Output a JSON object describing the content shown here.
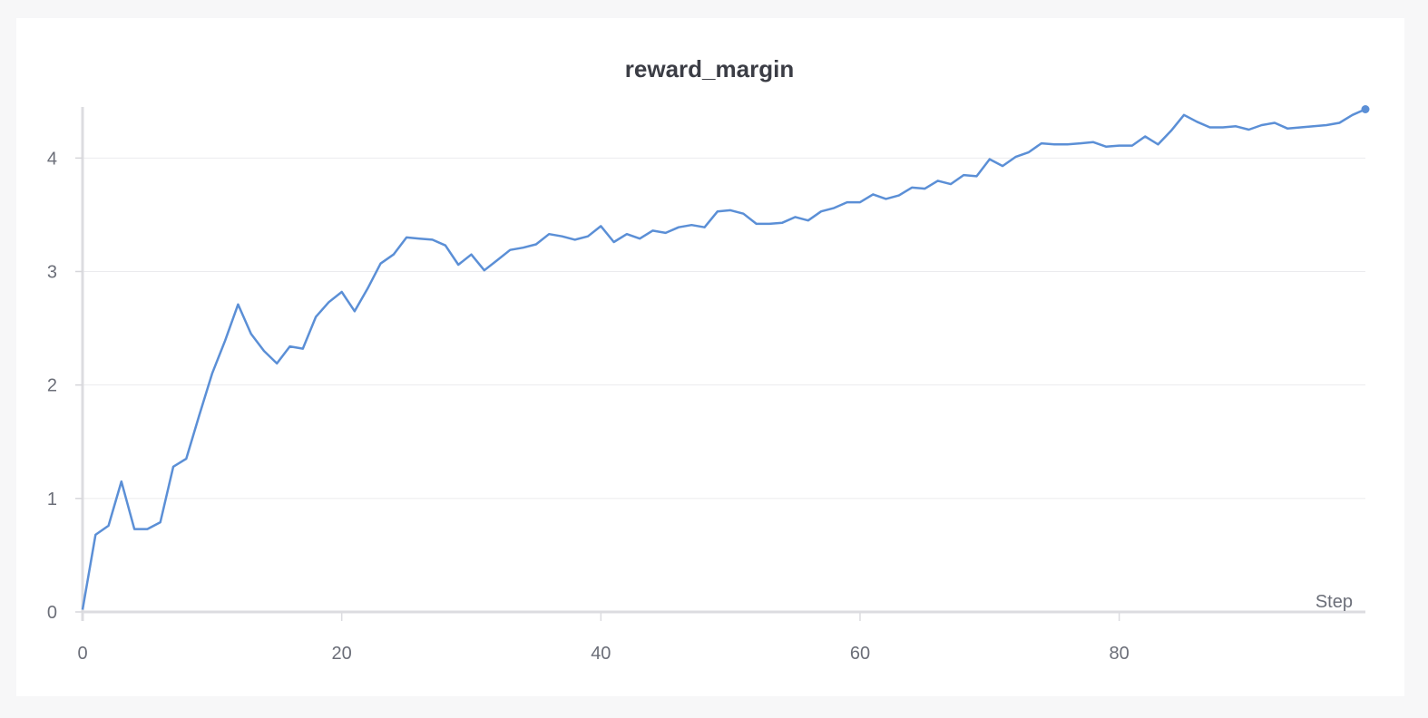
{
  "chart_data": {
    "type": "line",
    "title": "reward_margin",
    "xlabel": "Step",
    "ylabel": "",
    "xlim": [
      0,
      99
    ],
    "ylim": [
      0,
      4.45
    ],
    "xticks": [
      0,
      20,
      40,
      60,
      80
    ],
    "yticks": [
      0,
      1,
      2,
      3,
      4
    ],
    "grid": true,
    "legend": "none",
    "series": [
      {
        "color": "#5b8fd6",
        "x": [
          0,
          1,
          2,
          3,
          4,
          5,
          6,
          7,
          8,
          9,
          10,
          11,
          12,
          13,
          14,
          15,
          16,
          17,
          18,
          19,
          20,
          21,
          22,
          23,
          24,
          25,
          26,
          27,
          28,
          29,
          30,
          31,
          32,
          33,
          34,
          35,
          36,
          37,
          38,
          39,
          40,
          41,
          42,
          43,
          44,
          45,
          46,
          47,
          48,
          49,
          50,
          51,
          52,
          53,
          54,
          55,
          56,
          57,
          58,
          59,
          60,
          61,
          62,
          63,
          64,
          65,
          66,
          67,
          68,
          69,
          70,
          71,
          72,
          73,
          74,
          75,
          76,
          77,
          78,
          79,
          80,
          81,
          82,
          83,
          84,
          85,
          86,
          87,
          88,
          89,
          90,
          91,
          92,
          93,
          94,
          95,
          96,
          97,
          98,
          99
        ],
        "values": [
          0.02,
          0.68,
          0.76,
          1.15,
          0.73,
          0.73,
          0.79,
          1.28,
          1.35,
          1.73,
          2.1,
          2.39,
          2.71,
          2.45,
          2.3,
          2.19,
          2.34,
          2.32,
          2.6,
          2.73,
          2.82,
          2.65,
          2.85,
          3.07,
          3.15,
          3.3,
          3.29,
          3.28,
          3.23,
          3.06,
          3.15,
          3.01,
          3.1,
          3.19,
          3.21,
          3.24,
          3.33,
          3.31,
          3.28,
          3.31,
          3.4,
          3.26,
          3.33,
          3.29,
          3.36,
          3.34,
          3.39,
          3.41,
          3.39,
          3.53,
          3.54,
          3.51,
          3.42,
          3.42,
          3.43,
          3.48,
          3.45,
          3.53,
          3.56,
          3.61,
          3.61,
          3.68,
          3.64,
          3.67,
          3.74,
          3.73,
          3.8,
          3.77,
          3.85,
          3.84,
          3.99,
          3.93,
          4.01,
          4.05,
          4.13,
          4.12,
          4.12,
          4.13,
          4.14,
          4.1,
          4.11,
          4.11,
          4.19,
          4.12,
          4.24,
          4.38,
          4.32,
          4.27,
          4.27,
          4.28,
          4.25,
          4.29,
          4.31,
          4.26,
          4.27,
          4.28,
          4.29,
          4.31,
          4.38,
          4.43
        ]
      }
    ]
  }
}
